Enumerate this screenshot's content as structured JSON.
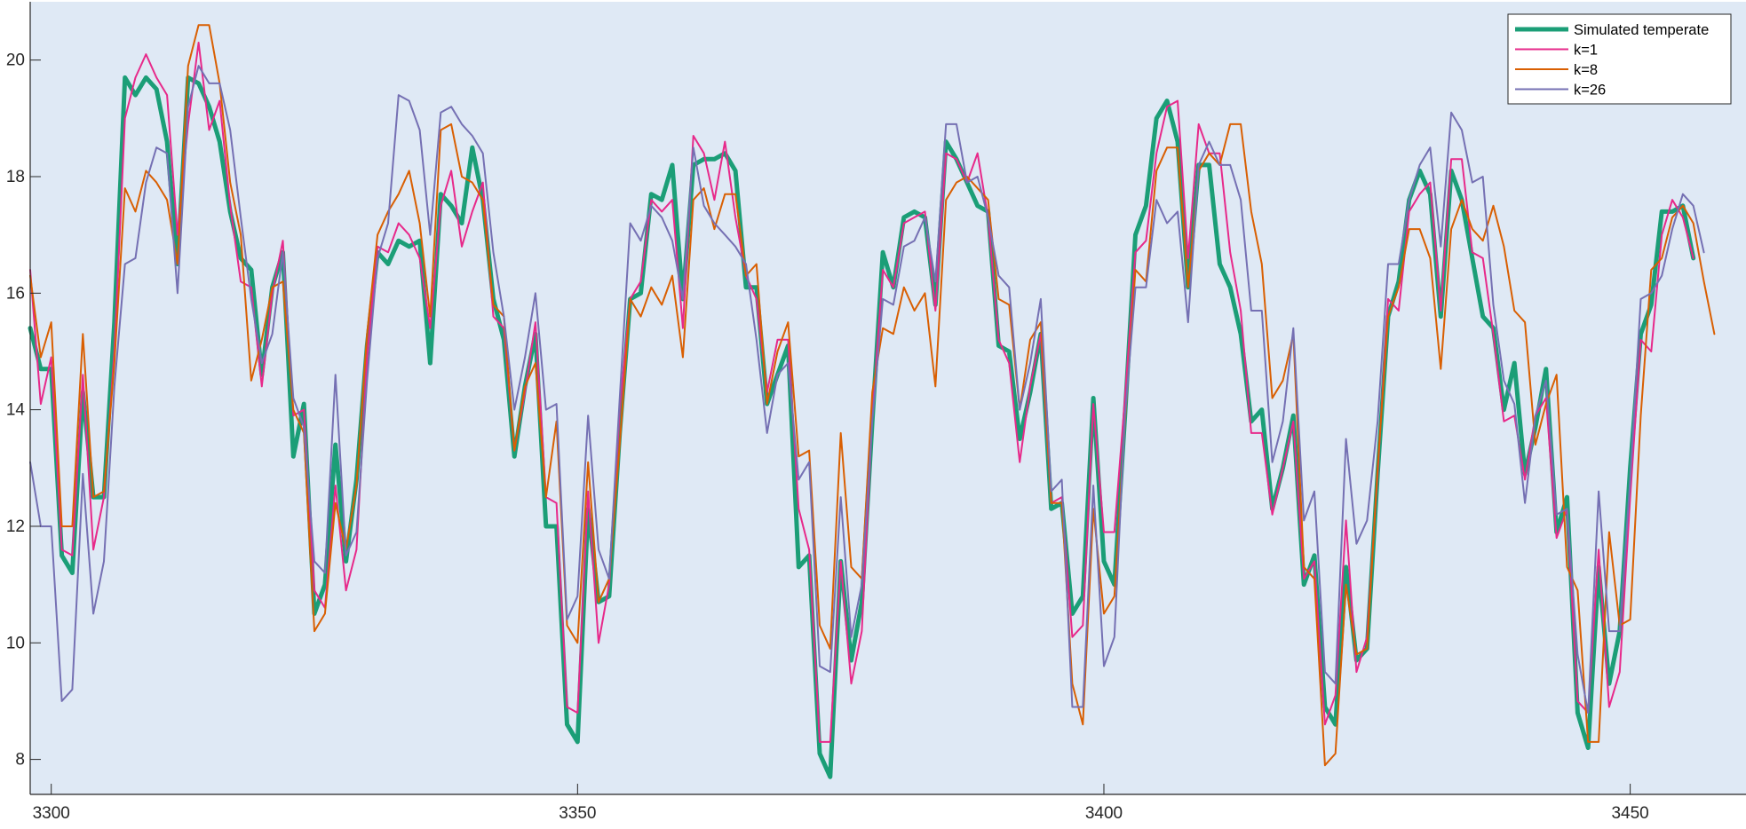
{
  "chart_data": {
    "type": "line",
    "title": "",
    "xlabel": "",
    "ylabel": "",
    "xlim": [
      3298,
      3461
    ],
    "ylim": [
      7.4,
      21.0
    ],
    "x_ticks": [
      3300,
      3350,
      3400,
      3450
    ],
    "y_ticks": [
      8,
      10,
      12,
      14,
      16,
      18,
      20
    ],
    "x_start": 3298,
    "grid": false,
    "legend_position": "top-right",
    "colors": {
      "plot_background": "#dfe9f5",
      "axis": "#262626"
    },
    "series": [
      {
        "name": "Simulated temperate",
        "color": "#1b9e77",
        "width": 5,
        "values": [
          15.4,
          14.7,
          14.7,
          11.5,
          11.2,
          14.3,
          12.5,
          12.5,
          15.5,
          19.7,
          19.4,
          19.7,
          19.5,
          18.6,
          16.5,
          19.7,
          19.6,
          19.2,
          18.6,
          17.4,
          16.6,
          16.4,
          14.6,
          16.1,
          16.7,
          13.2,
          14.1,
          10.5,
          11.0,
          13.4,
          11.4,
          12.8,
          15.1,
          16.7,
          16.5,
          16.9,
          16.8,
          16.9,
          14.8,
          17.7,
          17.5,
          17.2,
          18.5,
          17.6,
          15.9,
          15.2,
          13.2,
          14.4,
          15.3,
          12.0,
          12.0,
          8.6,
          8.3,
          12.3,
          10.7,
          10.8,
          13.6,
          15.9,
          16.0,
          17.7,
          17.6,
          18.2,
          15.9,
          18.2,
          18.3,
          18.3,
          18.4,
          18.1,
          16.1,
          16.1,
          14.1,
          14.6,
          15.1,
          11.3,
          11.5,
          8.1,
          7.7,
          11.4,
          9.7,
          10.7,
          13.8,
          16.7,
          16.1,
          17.3,
          17.4,
          17.3,
          15.8,
          18.6,
          18.3,
          17.9,
          17.5,
          17.4,
          15.1,
          15.0,
          13.5,
          14.3,
          15.3,
          12.3,
          12.4,
          10.5,
          10.8,
          14.2,
          11.4,
          11.0,
          13.9,
          17.0,
          17.5,
          19.0,
          19.3,
          18.6,
          16.1,
          18.2,
          18.2,
          16.5,
          16.1,
          15.3,
          13.8,
          14.0,
          12.3,
          13.0,
          13.9,
          11.0,
          11.5,
          8.9,
          8.6,
          11.3,
          9.7,
          9.9,
          12.9,
          15.6,
          16.2,
          17.6,
          18.1,
          17.7,
          15.6,
          18.1,
          17.6,
          16.6,
          15.6,
          15.4,
          14.0,
          14.8,
          12.9,
          13.7,
          14.7,
          11.9,
          12.5,
          8.8,
          8.2,
          11.3,
          9.3,
          10.2,
          13.0,
          15.3,
          15.8,
          17.4,
          17.4,
          17.5,
          16.6
        ]
      },
      {
        "name": "k=1",
        "color": "#e7298a",
        "width": 2,
        "values": [
          16.4,
          14.1,
          14.9,
          11.6,
          11.5,
          14.6,
          11.6,
          12.5,
          15.0,
          19.0,
          19.7,
          20.1,
          19.7,
          19.4,
          17.0,
          18.9,
          20.3,
          18.8,
          19.3,
          17.5,
          16.2,
          16.1,
          14.4,
          16.0,
          16.9,
          13.9,
          14.0,
          10.9,
          10.6,
          12.7,
          10.9,
          11.6,
          14.9,
          16.8,
          16.7,
          17.2,
          17.0,
          16.6,
          15.4,
          17.5,
          18.1,
          16.8,
          17.4,
          17.9,
          15.6,
          15.4,
          13.3,
          14.3,
          15.5,
          12.5,
          12.4,
          8.9,
          8.8,
          12.6,
          10.0,
          11.0,
          14.0,
          15.9,
          16.2,
          17.6,
          17.4,
          17.6,
          15.4,
          18.7,
          18.4,
          17.6,
          18.6,
          17.3,
          16.3,
          15.9,
          14.3,
          15.2,
          15.2,
          12.3,
          11.6,
          8.3,
          8.3,
          11.4,
          9.3,
          10.2,
          13.9,
          16.4,
          16.1,
          17.2,
          17.3,
          17.4,
          15.7,
          18.4,
          18.3,
          17.9,
          18.4,
          17.3,
          15.2,
          14.8,
          13.1,
          14.4,
          15.3,
          12.4,
          12.5,
          10.1,
          10.3,
          14.1,
          11.9,
          11.9,
          14.2,
          16.7,
          16.9,
          18.4,
          19.2,
          19.3,
          16.6,
          18.9,
          18.4,
          18.4,
          16.7,
          15.7,
          13.6,
          13.6,
          12.2,
          13.0,
          13.8,
          11.1,
          11.4,
          8.6,
          9.1,
          12.1,
          9.5,
          10.1,
          12.9,
          15.9,
          15.7,
          17.4,
          17.7,
          17.9,
          15.7,
          18.3,
          18.3,
          16.7,
          16.6,
          15.3,
          13.8,
          13.9,
          12.8,
          13.9,
          14.2,
          11.8,
          12.3,
          9.0,
          8.8,
          11.6,
          8.9,
          9.5,
          12.5,
          15.2,
          15.0,
          17.0,
          17.6,
          17.3,
          16.6
        ]
      },
      {
        "name": "k=8",
        "color": "#d95f02",
        "width": 2,
        "values": [
          16.3,
          14.9,
          15.5,
          12.0,
          12.0,
          15.3,
          12.5,
          12.6,
          14.8,
          17.8,
          17.4,
          18.1,
          17.9,
          17.6,
          16.5,
          19.9,
          20.6,
          20.6,
          19.6,
          17.9,
          17.0,
          14.5,
          15.2,
          16.1,
          16.2,
          14.0,
          13.6,
          10.2,
          10.5,
          12.4,
          11.6,
          12.7,
          15.3,
          17.0,
          17.4,
          17.7,
          18.1,
          17.2,
          15.6,
          18.8,
          18.9,
          18.0,
          17.9,
          17.6,
          15.8,
          15.6,
          13.3,
          14.4,
          14.8,
          12.5,
          13.8,
          10.3,
          10.0,
          13.1,
          10.7,
          11.1,
          13.4,
          15.9,
          15.6,
          16.1,
          15.8,
          16.3,
          14.9,
          17.6,
          17.8,
          17.1,
          17.7,
          17.7,
          16.3,
          16.5,
          14.1,
          15.0,
          15.5,
          13.2,
          13.3,
          10.3,
          9.9,
          13.6,
          11.3,
          11.1,
          14.3,
          15.4,
          15.3,
          16.1,
          15.7,
          16.0,
          14.4,
          17.6,
          17.9,
          18.0,
          17.8,
          17.6,
          15.9,
          15.8,
          14.0,
          15.2,
          15.5,
          12.4,
          12.4,
          9.3,
          8.6,
          12.3,
          10.5,
          10.8,
          13.8,
          16.4,
          16.2,
          18.1,
          18.5,
          18.5,
          16.1,
          18.1,
          18.4,
          18.2,
          18.9,
          18.9,
          17.4,
          16.5,
          14.2,
          14.5,
          15.3,
          11.3,
          11.1,
          7.9,
          8.1,
          11.0,
          9.8,
          9.9,
          13.0,
          15.6,
          16.1,
          17.1,
          17.1,
          16.6,
          14.7,
          17.1,
          17.6,
          17.1,
          16.9,
          17.5,
          16.8,
          15.7,
          15.5,
          13.4,
          14.1,
          14.6,
          11.3,
          10.9,
          8.3,
          8.3,
          11.9,
          10.3,
          10.4,
          13.9,
          16.4,
          16.6,
          17.3,
          17.5,
          17.2,
          16.2,
          15.3
        ]
      },
      {
        "name": "k=26",
        "color": "#7570b3",
        "width": 2,
        "values": [
          13.1,
          12.0,
          12.0,
          9.0,
          9.2,
          12.9,
          10.5,
          11.4,
          14.4,
          16.5,
          16.6,
          17.9,
          18.5,
          18.4,
          16.0,
          19.2,
          19.9,
          19.6,
          19.6,
          18.8,
          17.3,
          15.9,
          14.8,
          15.3,
          16.7,
          14.2,
          13.7,
          11.4,
          11.2,
          14.6,
          11.5,
          11.9,
          14.5,
          16.6,
          17.2,
          19.4,
          19.3,
          18.8,
          17.0,
          19.1,
          19.2,
          18.9,
          18.7,
          18.4,
          16.7,
          15.6,
          14.0,
          14.9,
          16.0,
          14.0,
          14.1,
          10.4,
          10.8,
          13.9,
          11.6,
          11.1,
          14.2,
          17.2,
          16.9,
          17.5,
          17.3,
          16.9,
          15.9,
          18.5,
          17.5,
          17.2,
          17.0,
          16.8,
          16.5,
          15.2,
          13.6,
          14.6,
          14.8,
          12.8,
          13.1,
          9.6,
          9.5,
          12.5,
          10.1,
          11.0,
          13.8,
          15.9,
          15.8,
          16.8,
          16.9,
          17.3,
          16.2,
          18.9,
          18.9,
          17.9,
          18.0,
          17.3,
          16.3,
          16.1,
          14.0,
          14.8,
          15.9,
          12.6,
          12.8,
          8.9,
          8.9,
          12.7,
          9.6,
          10.1,
          13.9,
          16.1,
          16.1,
          17.6,
          17.2,
          17.4,
          15.5,
          18.2,
          18.6,
          18.2,
          18.2,
          17.6,
          15.7,
          15.7,
          13.1,
          13.8,
          15.4,
          12.1,
          12.6,
          9.5,
          9.3,
          13.5,
          11.7,
          12.1,
          13.8,
          16.5,
          16.5,
          17.6,
          18.2,
          18.5,
          16.8,
          19.1,
          18.8,
          17.9,
          18.0,
          15.8,
          14.5,
          14.1,
          12.4,
          13.9,
          14.5,
          12.2,
          12.3,
          9.8,
          8.8,
          12.6,
          10.2,
          10.2,
          12.8,
          15.9,
          16.0,
          16.3,
          17.1,
          17.7,
          17.5,
          16.7
        ]
      }
    ]
  }
}
